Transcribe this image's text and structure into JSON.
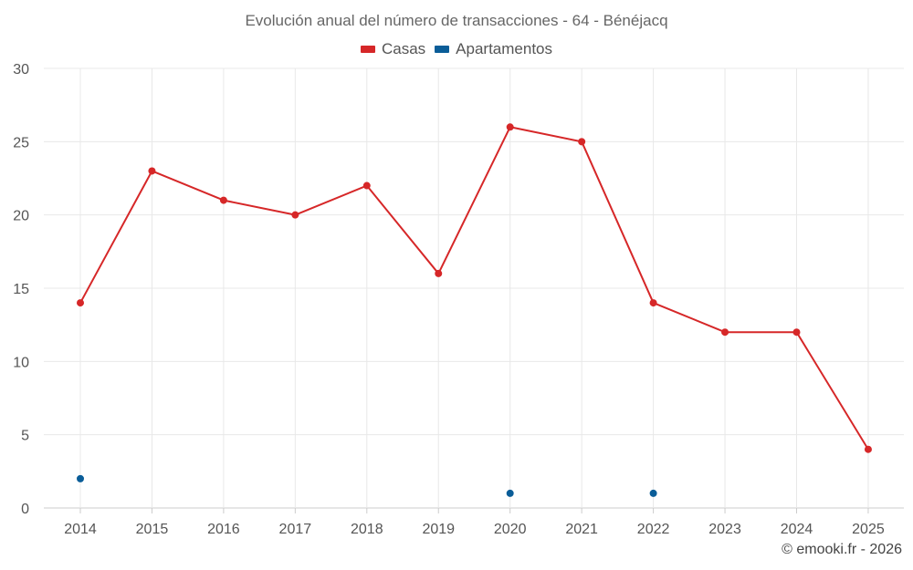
{
  "colors": {
    "casas": "#d62728",
    "apartamentos": "#0a5d98",
    "grid": "#e8e8e8",
    "axis": "#cccccc"
  },
  "chart_data": {
    "type": "line",
    "title": "Evolución anual del número de transacciones - 64 - Bénéjacq",
    "xlabel": "",
    "ylabel": "",
    "categories": [
      "2014",
      "2015",
      "2016",
      "2017",
      "2018",
      "2019",
      "2020",
      "2021",
      "2022",
      "2023",
      "2024",
      "2025"
    ],
    "ylim": [
      0,
      30
    ],
    "yticks": [
      0,
      5,
      10,
      15,
      20,
      25,
      30
    ],
    "grid": true,
    "legend_position": "top-center",
    "series": [
      {
        "name": "Casas",
        "color": "#d62728",
        "style": "line-markers",
        "values": [
          14,
          23,
          21,
          20,
          22,
          16,
          26,
          25,
          14,
          12,
          12,
          4
        ]
      },
      {
        "name": "Apartamentos",
        "color": "#0a5d98",
        "style": "markers",
        "values": [
          2,
          null,
          null,
          null,
          null,
          null,
          1,
          null,
          1,
          null,
          null,
          null
        ]
      }
    ]
  },
  "footer": {
    "credit": "© emooki.fr - 2026"
  }
}
